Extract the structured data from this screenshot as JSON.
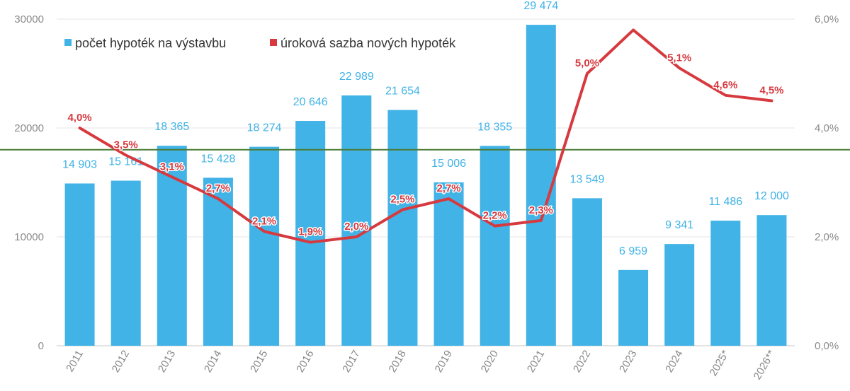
{
  "chart_data": {
    "type": "bar",
    "categories": [
      "2011",
      "2012",
      "2013",
      "2014",
      "2015",
      "2016",
      "2017",
      "2018",
      "2019",
      "2020",
      "2021",
      "2022",
      "2023",
      "2024",
      "2025*",
      "2026**"
    ],
    "series": [
      {
        "name": "počet hypoték na výstavbu",
        "type": "bar",
        "axis": "left",
        "color": "#41b3e6",
        "values": [
          14903,
          15161,
          18365,
          15428,
          18274,
          20646,
          22989,
          21654,
          15006,
          18355,
          29474,
          13549,
          6959,
          9341,
          11486,
          12000
        ],
        "labels": [
          "14 903",
          "15 161",
          "18 365",
          "15 428",
          "18 274",
          "20 646",
          "22 989",
          "21 654",
          "15 006",
          "18 355",
          "29 474",
          "13 549",
          "6 959",
          "9 341",
          "11 486",
          "12 000"
        ]
      },
      {
        "name": "úroková sazba nových hypoték",
        "type": "line",
        "axis": "right",
        "color": "#d63a3f",
        "values": [
          4.0,
          3.5,
          3.1,
          2.7,
          2.1,
          1.9,
          2.0,
          2.5,
          2.7,
          2.2,
          2.3,
          5.0,
          5.8,
          5.1,
          4.6,
          4.5
        ],
        "labels": [
          "4,0%",
          "3,5%",
          "3,1%",
          "2,7%",
          "2,1%",
          "1,9%",
          "2,0%",
          "2,5%",
          "2,7%",
          "2,2%",
          "2,3%",
          "5,0%",
          "",
          "5,1%",
          "4,6%",
          "4,5%"
        ]
      }
    ],
    "y_left": {
      "ylim": [
        0,
        30000
      ],
      "ticks": [
        "0",
        "10000",
        "20000",
        "30000"
      ],
      "tick_values": [
        0,
        10000,
        20000,
        30000
      ]
    },
    "y_right": {
      "ylim": [
        0,
        6
      ],
      "ticks": [
        "0,0%",
        "2,0%",
        "4,0%",
        "6,0%"
      ],
      "tick_values": [
        0,
        2,
        4,
        6
      ]
    },
    "reference_line": {
      "axis": "right",
      "value": 3.6,
      "color": "#4a7a34"
    },
    "grid": true,
    "legend_position": "top-left"
  }
}
